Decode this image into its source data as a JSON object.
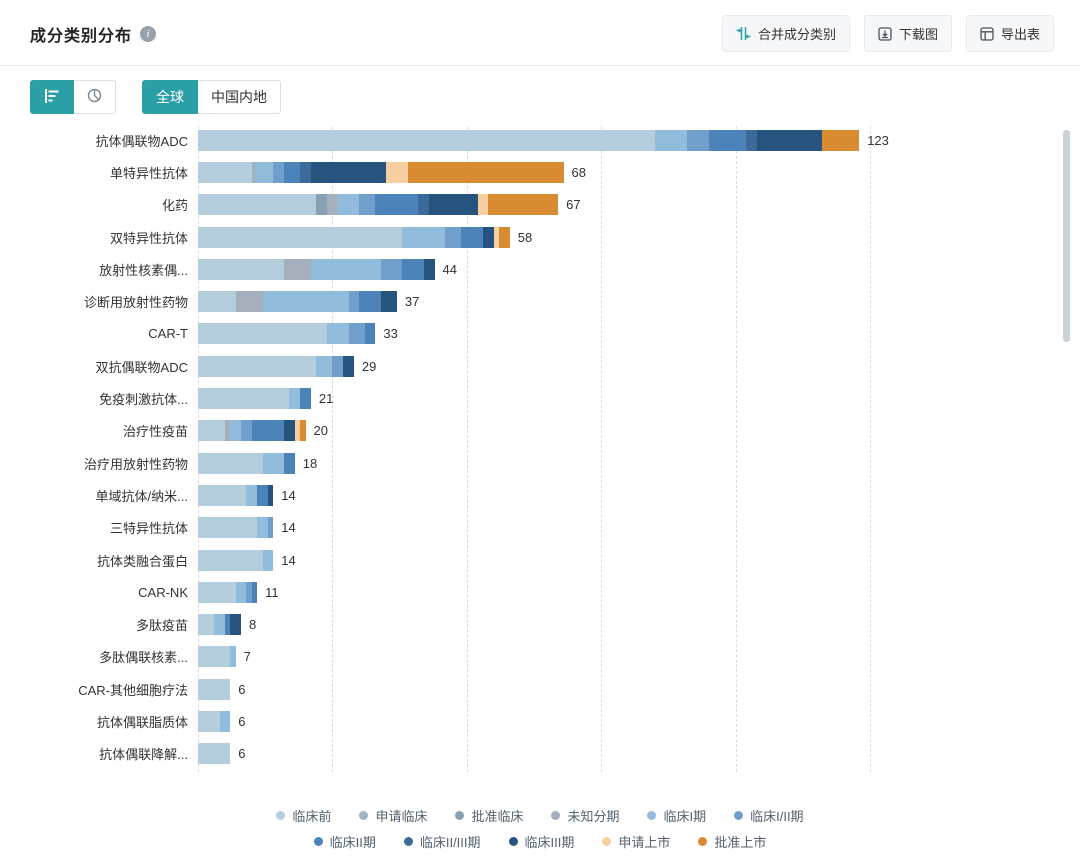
{
  "header": {
    "title": "成分类别分布",
    "actions": [
      {
        "name": "merge-category-button",
        "icon": "merge-icon",
        "label": "合并成分类别"
      },
      {
        "name": "download-image-button",
        "icon": "download-icon",
        "label": "下载图"
      },
      {
        "name": "export-table-button",
        "icon": "export-icon",
        "label": "导出表"
      }
    ]
  },
  "toolbar": {
    "chart_types": [
      {
        "name": "bar-chart-toggle",
        "icon": "bar-chart-icon",
        "selected": true
      },
      {
        "name": "pie-chart-toggle",
        "icon": "pie-chart-icon",
        "selected": false
      }
    ],
    "regions": [
      {
        "label": "全球",
        "selected": true
      },
      {
        "label": "中国内地",
        "selected": false
      }
    ]
  },
  "colors": {
    "accent": "#2aa0a6"
  },
  "chart_data": {
    "type": "bar",
    "orientation": "horizontal",
    "stacked": true,
    "title": "成分类别分布",
    "xlabel": "",
    "ylabel": "",
    "x_max": 125,
    "grid_interval": 25,
    "grid": "dashed-vertical",
    "legend_position": "bottom",
    "stages": [
      {
        "name": "临床前",
        "color": "#b4cedd"
      },
      {
        "name": "申请临床",
        "color": "#9db5c6"
      },
      {
        "name": "批准临床",
        "color": "#87a0b4"
      },
      {
        "name": "未知分期",
        "color": "#a6b0bc"
      },
      {
        "name": "临床I期",
        "color": "#92bcdc"
      },
      {
        "name": "临床I/II期",
        "color": "#6f9fca"
      },
      {
        "name": "临床II期",
        "color": "#4c84b9"
      },
      {
        "name": "临床II/III期",
        "color": "#3a6b9a"
      },
      {
        "name": "临床III期",
        "color": "#27547e"
      },
      {
        "name": "申请上市",
        "color": "#f7cfa0"
      },
      {
        "name": "批准上市",
        "color": "#d98b31"
      }
    ],
    "legend_rows": [
      [
        0,
        1,
        2,
        3,
        4,
        5
      ],
      [
        6,
        7,
        8,
        9,
        10
      ]
    ],
    "bars": [
      {
        "category": "抗体偶联物ADC",
        "total": 123,
        "segments": [
          {
            "stage": "临床前",
            "value": 85
          },
          {
            "stage": "临床I期",
            "value": 6
          },
          {
            "stage": "临床I/II期",
            "value": 4
          },
          {
            "stage": "临床II期",
            "value": 7
          },
          {
            "stage": "临床II/III期",
            "value": 2
          },
          {
            "stage": "临床III期",
            "value": 12
          },
          {
            "stage": "批准上市",
            "value": 7
          }
        ]
      },
      {
        "category": "单特异性抗体",
        "total": 68,
        "segments": [
          {
            "stage": "临床前",
            "value": 10
          },
          {
            "stage": "申请临床",
            "value": 1
          },
          {
            "stage": "临床I期",
            "value": 3
          },
          {
            "stage": "临床I/II期",
            "value": 2
          },
          {
            "stage": "临床II期",
            "value": 3
          },
          {
            "stage": "临床II/III期",
            "value": 2
          },
          {
            "stage": "临床III期",
            "value": 14
          },
          {
            "stage": "申请上市",
            "value": 4
          },
          {
            "stage": "批准上市",
            "value": 29
          }
        ]
      },
      {
        "category": "化药",
        "total": 67,
        "segments": [
          {
            "stage": "临床前",
            "value": 22
          },
          {
            "stage": "批准临床",
            "value": 2
          },
          {
            "stage": "未知分期",
            "value": 2
          },
          {
            "stage": "临床I期",
            "value": 4
          },
          {
            "stage": "临床I/II期",
            "value": 3
          },
          {
            "stage": "临床II期",
            "value": 8
          },
          {
            "stage": "临床II/III期",
            "value": 2
          },
          {
            "stage": "临床III期",
            "value": 9
          },
          {
            "stage": "申请上市",
            "value": 2
          },
          {
            "stage": "批准上市",
            "value": 13
          }
        ]
      },
      {
        "category": "双特异性抗体",
        "total": 58,
        "segments": [
          {
            "stage": "临床前",
            "value": 38
          },
          {
            "stage": "临床I期",
            "value": 8
          },
          {
            "stage": "临床I/II期",
            "value": 3
          },
          {
            "stage": "临床II期",
            "value": 4
          },
          {
            "stage": "临床III期",
            "value": 2
          },
          {
            "stage": "申请上市",
            "value": 1
          },
          {
            "stage": "批准上市",
            "value": 2
          }
        ]
      },
      {
        "category": "放射性核素偶...",
        "total": 44,
        "segments": [
          {
            "stage": "临床前",
            "value": 16
          },
          {
            "stage": "未知分期",
            "value": 5
          },
          {
            "stage": "临床I期",
            "value": 13
          },
          {
            "stage": "临床I/II期",
            "value": 4
          },
          {
            "stage": "临床II期",
            "value": 4
          },
          {
            "stage": "临床III期",
            "value": 2
          }
        ]
      },
      {
        "category": "诊断用放射性药物",
        "total": 37,
        "segments": [
          {
            "stage": "临床前",
            "value": 7
          },
          {
            "stage": "未知分期",
            "value": 5
          },
          {
            "stage": "临床I期",
            "value": 16
          },
          {
            "stage": "临床I/II期",
            "value": 2
          },
          {
            "stage": "临床II期",
            "value": 4
          },
          {
            "stage": "临床III期",
            "value": 3
          }
        ]
      },
      {
        "category": "CAR-T",
        "total": 33,
        "segments": [
          {
            "stage": "临床前",
            "value": 24
          },
          {
            "stage": "临床I期",
            "value": 4
          },
          {
            "stage": "临床I/II期",
            "value": 3
          },
          {
            "stage": "临床II期",
            "value": 2
          }
        ]
      },
      {
        "category": "双抗偶联物ADC",
        "total": 29,
        "segments": [
          {
            "stage": "临床前",
            "value": 22
          },
          {
            "stage": "临床I期",
            "value": 3
          },
          {
            "stage": "临床I/II期",
            "value": 2
          },
          {
            "stage": "临床III期",
            "value": 2
          }
        ]
      },
      {
        "category": "免疫刺激抗体...",
        "total": 21,
        "segments": [
          {
            "stage": "临床前",
            "value": 17
          },
          {
            "stage": "临床I期",
            "value": 2
          },
          {
            "stage": "临床II期",
            "value": 2
          }
        ]
      },
      {
        "category": "治疗性疫苗",
        "total": 20,
        "segments": [
          {
            "stage": "临床前",
            "value": 5
          },
          {
            "stage": "未知分期",
            "value": 1
          },
          {
            "stage": "临床I期",
            "value": 2
          },
          {
            "stage": "临床I/II期",
            "value": 2
          },
          {
            "stage": "临床II期",
            "value": 6
          },
          {
            "stage": "临床III期",
            "value": 2
          },
          {
            "stage": "申请上市",
            "value": 1
          },
          {
            "stage": "批准上市",
            "value": 1
          }
        ]
      },
      {
        "category": "治疗用放射性药物",
        "total": 18,
        "segments": [
          {
            "stage": "临床前",
            "value": 12
          },
          {
            "stage": "临床I期",
            "value": 4
          },
          {
            "stage": "临床II期",
            "value": 2
          }
        ]
      },
      {
        "category": "单域抗体/纳米...",
        "total": 14,
        "segments": [
          {
            "stage": "临床前",
            "value": 9
          },
          {
            "stage": "临床I期",
            "value": 2
          },
          {
            "stage": "临床II期",
            "value": 2
          },
          {
            "stage": "临床III期",
            "value": 1
          }
        ]
      },
      {
        "category": "三特异性抗体",
        "total": 14,
        "segments": [
          {
            "stage": "临床前",
            "value": 11
          },
          {
            "stage": "临床I期",
            "value": 2
          },
          {
            "stage": "临床I/II期",
            "value": 1
          }
        ]
      },
      {
        "category": "抗体类融合蛋白",
        "total": 14,
        "segments": [
          {
            "stage": "临床前",
            "value": 12
          },
          {
            "stage": "临床I期",
            "value": 2
          }
        ]
      },
      {
        "category": "CAR-NK",
        "total": 11,
        "segments": [
          {
            "stage": "临床前",
            "value": 7
          },
          {
            "stage": "临床I期",
            "value": 2
          },
          {
            "stage": "临床I/II期",
            "value": 1
          },
          {
            "stage": "临床II期",
            "value": 1
          }
        ]
      },
      {
        "category": "多肽疫苗",
        "total": 8,
        "segments": [
          {
            "stage": "临床前",
            "value": 3
          },
          {
            "stage": "临床I期",
            "value": 2
          },
          {
            "stage": "临床II期",
            "value": 1
          },
          {
            "stage": "临床III期",
            "value": 2
          }
        ]
      },
      {
        "category": "多肽偶联核素...",
        "total": 7,
        "segments": [
          {
            "stage": "临床前",
            "value": 6
          },
          {
            "stage": "临床I期",
            "value": 1
          }
        ]
      },
      {
        "category": "CAR-其他细胞疗法",
        "total": 6,
        "segments": [
          {
            "stage": "临床前",
            "value": 6
          }
        ]
      },
      {
        "category": "抗体偶联脂质体",
        "total": 6,
        "segments": [
          {
            "stage": "临床前",
            "value": 4
          },
          {
            "stage": "临床I期",
            "value": 2
          }
        ]
      },
      {
        "category": "抗体偶联降解...",
        "total": 6,
        "segments": [
          {
            "stage": "临床前",
            "value": 6
          }
        ]
      }
    ]
  }
}
